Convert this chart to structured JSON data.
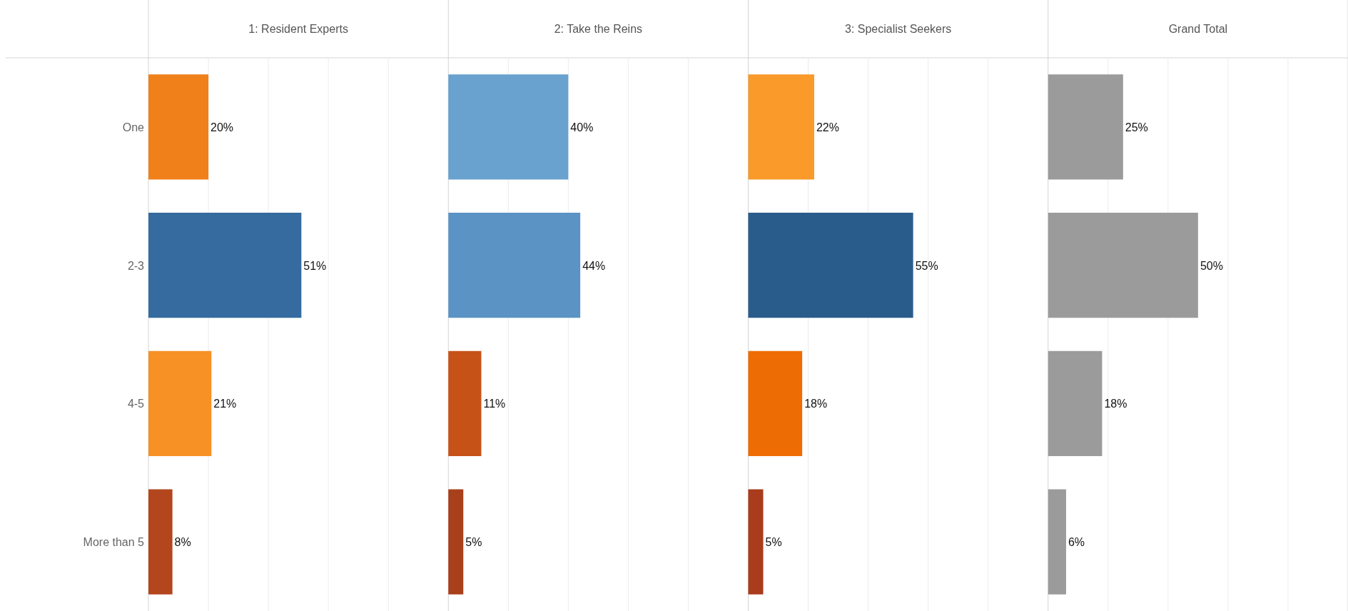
{
  "chart_data": [
    {
      "type": "bar",
      "title": "1: Resident Experts",
      "orientation": "horizontal",
      "categories": [
        "One",
        "2-3",
        "4-5",
        "More than 5"
      ],
      "values": [
        20,
        51,
        21,
        8
      ],
      "value_labels": [
        "20%",
        "51%",
        "21%",
        "8%"
      ],
      "colors": [
        "#f0801a",
        "#356b9e",
        "#f79025",
        "#b3461d"
      ],
      "xlim": [
        0,
        100
      ],
      "xticks": [
        {
          "value": 20,
          "label": null
        },
        {
          "value": 40,
          "label": null
        },
        {
          "value": 60,
          "label": null
        },
        {
          "value": 80,
          "label": null
        }
      ],
      "grid": "x",
      "tick_labels": "y"
    },
    {
      "type": "bar",
      "title": "2: Take the Reins",
      "orientation": "horizontal",
      "categories": [
        null,
        null,
        null,
        null
      ],
      "values": [
        40,
        44,
        11,
        5
      ],
      "value_labels": [
        "40%",
        "44%",
        "11%",
        "5%"
      ],
      "colors": [
        "#6aa2cf",
        "#5b93c4",
        "#c65218",
        "#a8401c"
      ],
      "xlim": [
        0,
        100
      ],
      "xticks": [
        {
          "value": 20,
          "label": null
        },
        {
          "value": 40,
          "label": null
        },
        {
          "value": 60,
          "label": null
        },
        {
          "value": 80,
          "label": null
        }
      ],
      "grid": "x",
      "tick_labels": false
    },
    {
      "type": "bar",
      "title": "3: Specialist Seekers",
      "orientation": "horizontal",
      "categories": [
        null,
        null,
        null,
        null
      ],
      "values": [
        22,
        55,
        18,
        5
      ],
      "value_labels": [
        "22%",
        "55%",
        "18%",
        "5%"
      ],
      "colors": [
        "#f99a2a",
        "#2a5c8b",
        "#ed6d04",
        "#a83c1c"
      ],
      "xlim": [
        0,
        100
      ],
      "xticks": [
        {
          "value": 20,
          "label": null
        },
        {
          "value": 40,
          "label": null
        },
        {
          "value": 60,
          "label": null
        },
        {
          "value": 80,
          "label": null
        }
      ],
      "grid": "x",
      "tick_labels": false
    },
    {
      "type": "bar",
      "title": "Grand Total",
      "orientation": "horizontal",
      "categories": [
        null,
        null,
        null,
        null
      ],
      "values": [
        25,
        50,
        18,
        6
      ],
      "value_labels": [
        "25%",
        "50%",
        "18%",
        "6%"
      ],
      "colors": [
        "#9b9b9b",
        "#9b9b9b",
        "#9b9b9b",
        "#9b9b9b"
      ],
      "xlim": [
        0,
        100
      ],
      "xticks": [
        {
          "value": 20,
          "label": null
        },
        {
          "value": 40,
          "label": null
        },
        {
          "value": 60,
          "label": null
        },
        {
          "value": 80,
          "label": null
        }
      ],
      "grid": "x",
      "tick_labels": false
    }
  ]
}
